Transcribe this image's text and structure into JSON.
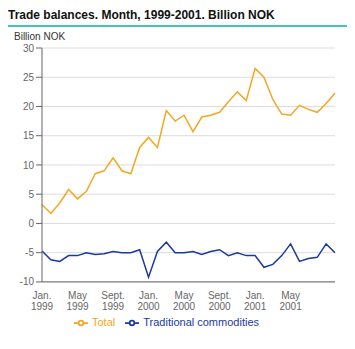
{
  "chart_data": {
    "type": "line",
    "title": "Trade balances. Month, 1999-2001. Billion NOK",
    "ylabel": "Billion NOK",
    "categories": [
      "Jan.\n1999",
      null,
      null,
      null,
      "May\n1999",
      null,
      null,
      null,
      "Sept.\n1999",
      null,
      null,
      null,
      "Jan.\n2000",
      null,
      null,
      null,
      "May\n2000",
      null,
      null,
      null,
      "Sept.\n2000",
      null,
      null,
      null,
      "Jan.\n2001",
      null,
      null,
      null,
      "May\n2001",
      null,
      null,
      null,
      null,
      null
    ],
    "series": [
      {
        "name": "Total",
        "color": "#F5A623",
        "values": [
          3.2,
          1.7,
          3.5,
          5.8,
          4.2,
          5.5,
          8.5,
          9.0,
          11.2,
          9.0,
          8.5,
          13.0,
          14.7,
          13.0,
          19.3,
          17.5,
          18.5,
          15.7,
          18.2,
          18.5,
          19.0,
          20.8,
          22.5,
          21.0,
          26.5,
          25.0,
          21.2,
          18.7,
          18.5,
          20.2,
          19.5,
          19.0,
          20.5,
          22.3
        ]
      },
      {
        "name": "Traditional commodities",
        "color": "#1A3A9C",
        "values": [
          -4.7,
          -6.2,
          -6.5,
          -5.5,
          -5.5,
          -5.0,
          -5.3,
          -5.2,
          -4.8,
          -5.0,
          -5.0,
          -4.5,
          -9.2,
          -4.8,
          -3.2,
          -5.0,
          -5.0,
          -4.8,
          -5.3,
          -4.8,
          -4.5,
          -5.5,
          -5.0,
          -5.5,
          -5.5,
          -7.5,
          -7.0,
          -5.5,
          -3.5,
          -6.5,
          -6.0,
          -5.8,
          -3.5,
          -5.0
        ]
      }
    ],
    "ylim": [
      -10,
      30
    ],
    "yticks": [
      -10,
      -5,
      0,
      5,
      10,
      15,
      20,
      25,
      30
    ],
    "grid": true,
    "legend": "bottom"
  }
}
